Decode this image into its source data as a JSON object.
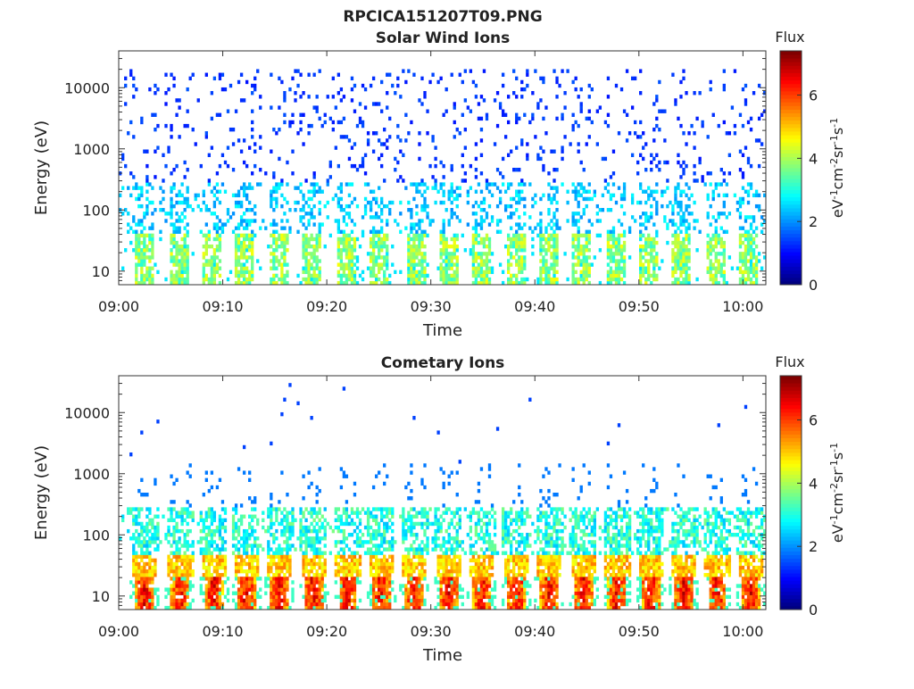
{
  "figure_title": "RPCICA151207T09.PNG",
  "chart_data": [
    {
      "type": "heatmap",
      "title": "Solar Wind Ions",
      "xlabel": "Time",
      "ylabel": "Energy (eV)",
      "y_scale": "log",
      "ylim": [
        6,
        40000
      ],
      "xlim": [
        "09:00",
        "10:02"
      ],
      "x_ticks": [
        "09:00",
        "09:10",
        "09:20",
        "09:30",
        "09:40",
        "09:50",
        "10:00"
      ],
      "y_ticks": [
        "10",
        "100",
        "1000",
        "10000"
      ],
      "colorbar": {
        "title": "Flux",
        "label": "eV^-1 cm^-2 sr^-1 s^-1",
        "range": [
          0,
          7.4
        ],
        "ticks": [
          "0",
          "2",
          "4",
          "6"
        ],
        "colormap": "jet"
      },
      "pulse_centers_min": [
        2.4,
        5.6,
        8.9,
        12.0,
        15.2,
        18.4,
        21.8,
        25.0,
        28.4,
        31.6,
        34.8,
        38.0,
        41.2,
        44.4,
        47.6,
        50.8,
        54.0,
        57.2,
        60.4
      ],
      "description_values": {
        "low_energy_band_eV": [
          8,
          40
        ],
        "low_band_flux": 3.8,
        "mid_band_eV": [
          40,
          300
        ],
        "mid_band_flux": 2.4,
        "high_scatter_eV": [
          300,
          20000
        ],
        "high_scatter_flux": 1.3
      }
    },
    {
      "type": "heatmap",
      "title": "Cometary Ions",
      "xlabel": "Time",
      "ylabel": "Energy (eV)",
      "y_scale": "log",
      "ylim": [
        6,
        40000
      ],
      "xlim": [
        "09:00",
        "10:02"
      ],
      "x_ticks": [
        "09:00",
        "09:10",
        "09:20",
        "09:30",
        "09:40",
        "09:50",
        "10:00"
      ],
      "y_ticks": [
        "10",
        "100",
        "1000",
        "10000"
      ],
      "colorbar": {
        "title": "Flux",
        "label": "eV^-1 cm^-2 sr^-1 s^-1",
        "range": [
          0,
          7.4
        ],
        "ticks": [
          "0",
          "2",
          "4",
          "6"
        ],
        "colormap": "jet"
      },
      "pulse_centers_min": [
        2.4,
        5.8,
        9.0,
        12.1,
        15.3,
        18.6,
        21.9,
        25.1,
        28.3,
        31.6,
        34.8,
        38.1,
        41.3,
        44.5,
        47.8,
        51.0,
        54.2,
        57.4,
        60.6
      ],
      "description_values": {
        "peak_energy_eV": [
          8,
          20
        ],
        "peak_flux": 6.5,
        "band_40eV_flux": 5.0,
        "mid_band_eV": [
          40,
          300
        ],
        "mid_band_flux": 3.0,
        "sparse_high_eV": [
          300,
          30000
        ],
        "sparse_high_flux": 1.4
      }
    }
  ]
}
